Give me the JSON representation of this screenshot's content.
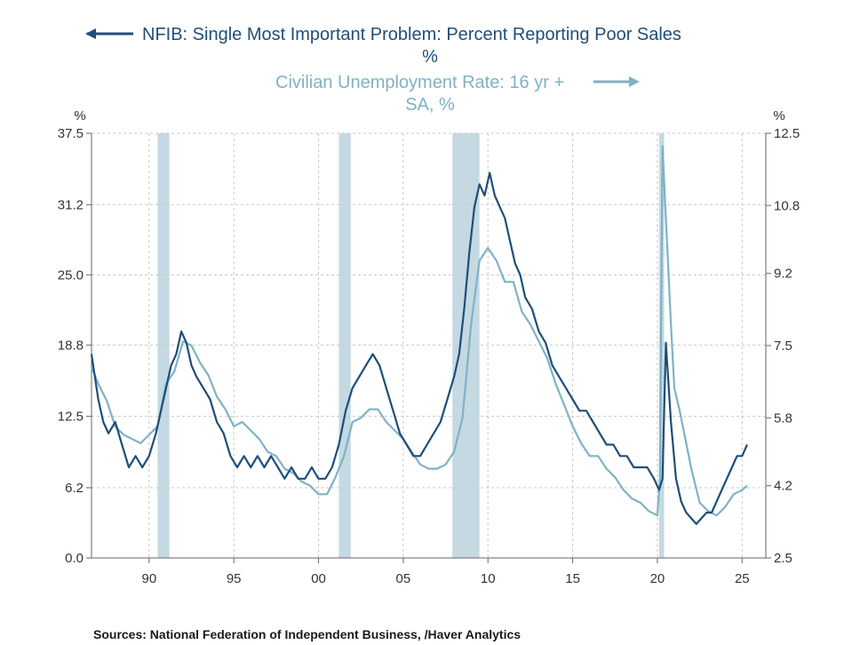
{
  "chart_data": {
    "type": "line",
    "title_left": "NFIB: Single Most Important Problem: Percent Reporting Poor Sales",
    "title_left_unit": "%",
    "title_right": "Civilian Unemployment Rate: 16 yr +",
    "title_right_unit": "SA, %",
    "left_axis": {
      "unit_label": "%",
      "ylim": [
        0.0,
        37.5
      ],
      "ticks": [
        0.0,
        6.2,
        12.5,
        18.8,
        25.0,
        31.2,
        37.5
      ],
      "tick_labels": [
        "0.0",
        "6.2",
        "12.5",
        "18.8",
        "25.0",
        "31.2",
        "37.5"
      ]
    },
    "right_axis": {
      "unit_label": "%",
      "ylim": [
        2.5,
        12.5
      ],
      "ticks": [
        2.5,
        4.2,
        5.8,
        7.5,
        9.2,
        10.8,
        12.5
      ],
      "tick_labels": [
        "2.5",
        "4.2",
        "5.8",
        "7.5",
        "9.2",
        "10.8",
        "12.5"
      ]
    },
    "x_axis": {
      "xlim": [
        1986.6,
        2026.4
      ],
      "ticks": [
        1990,
        1995,
        2000,
        2005,
        2010,
        2015,
        2020,
        2025
      ],
      "tick_labels": [
        "90",
        "95",
        "00",
        "05",
        "10",
        "15",
        "20",
        "25"
      ]
    },
    "grid": true,
    "recessions": [
      [
        1990.5,
        1991.2
      ],
      [
        2001.2,
        2001.9
      ],
      [
        2007.9,
        2009.5
      ],
      [
        2020.1,
        2020.4
      ]
    ],
    "colors": {
      "nfib": "#1f4e79",
      "unemployment": "#7fb2c5",
      "recession": "#c5d9e3"
    },
    "series": [
      {
        "name": "NFIB: Single Most Important Problem: Percent Reporting Poor Sales",
        "axis": "left",
        "x": [
          1986.6,
          1986.8,
          1987,
          1987.3,
          1987.6,
          1988,
          1988.4,
          1988.8,
          1989.2,
          1989.6,
          1990,
          1990.4,
          1990.7,
          1991,
          1991.3,
          1991.6,
          1991.9,
          1992.2,
          1992.5,
          1992.8,
          1993.2,
          1993.6,
          1994,
          1994.4,
          1994.8,
          1995.2,
          1995.6,
          1996,
          1996.4,
          1996.8,
          1997.2,
          1997.6,
          1998,
          1998.4,
          1998.8,
          1999.2,
          1999.6,
          2000,
          2000.4,
          2000.8,
          2001.2,
          2001.6,
          2002,
          2002.4,
          2002.8,
          2003.2,
          2003.6,
          2004,
          2004.4,
          2004.8,
          2005.2,
          2005.6,
          2006,
          2006.4,
          2006.8,
          2007.2,
          2007.6,
          2008,
          2008.3,
          2008.6,
          2008.9,
          2009.2,
          2009.5,
          2009.8,
          2010.1,
          2010.4,
          2010.7,
          2011,
          2011.3,
          2011.6,
          2011.9,
          2012.2,
          2012.6,
          2013,
          2013.4,
          2013.8,
          2014.2,
          2014.6,
          2015,
          2015.4,
          2015.8,
          2016.2,
          2016.6,
          2017,
          2017.4,
          2017.8,
          2018.2,
          2018.6,
          2019,
          2019.4,
          2019.8,
          2020.1,
          2020.3,
          2020.5,
          2020.8,
          2021.1,
          2021.4,
          2021.7,
          2022,
          2022.3,
          2022.6,
          2022.9,
          2023.2,
          2023.5,
          2023.8,
          2024.1,
          2024.4,
          2024.7,
          2025,
          2025.3
        ],
        "y": [
          18,
          16,
          14,
          12,
          11,
          12,
          10,
          8,
          9,
          8,
          9,
          11,
          13,
          15,
          17,
          18,
          20,
          19,
          17,
          16,
          15,
          14,
          12,
          11,
          9,
          8,
          9,
          8,
          9,
          8,
          9,
          8,
          7,
          8,
          7,
          7,
          8,
          7,
          7,
          8,
          10,
          13,
          15,
          16,
          17,
          18,
          17,
          15,
          13,
          11,
          10,
          9,
          9,
          10,
          11,
          12,
          14,
          16,
          18,
          22,
          27,
          31,
          33,
          32,
          34,
          32,
          31,
          30,
          28,
          26,
          25,
          23,
          22,
          20,
          19,
          17,
          16,
          15,
          14,
          13,
          13,
          12,
          11,
          10,
          10,
          9,
          9,
          8,
          8,
          8,
          7,
          6,
          7,
          19,
          12,
          7,
          5,
          4,
          3.5,
          3,
          3.5,
          4,
          4,
          5,
          6,
          7,
          8,
          9,
          9,
          10
        ]
      },
      {
        "name": "Civilian Unemployment Rate: 16 yr +",
        "axis": "right",
        "x": [
          1986.6,
          1987,
          1987.5,
          1988,
          1988.5,
          1989,
          1989.5,
          1990,
          1990.5,
          1991,
          1991.5,
          1992,
          1992.5,
          1993,
          1993.5,
          1994,
          1994.5,
          1995,
          1995.5,
          1996,
          1996.5,
          1997,
          1997.5,
          1998,
          1998.5,
          1999,
          1999.5,
          2000,
          2000.5,
          2001,
          2001.5,
          2002,
          2002.5,
          2003,
          2003.5,
          2004,
          2004.5,
          2005,
          2005.5,
          2006,
          2006.5,
          2007,
          2007.5,
          2008,
          2008.5,
          2009,
          2009.5,
          2010,
          2010.5,
          2011,
          2011.5,
          2012,
          2012.5,
          2013,
          2013.5,
          2014,
          2014.5,
          2015,
          2015.5,
          2016,
          2016.5,
          2017,
          2017.5,
          2018,
          2018.5,
          2019,
          2019.5,
          2020,
          2020.15,
          2020.3,
          2020.5,
          2020.8,
          2021,
          2021.3,
          2021.6,
          2022,
          2022.5,
          2023,
          2023.5,
          2024,
          2024.5,
          2025,
          2025.3
        ],
        "y": [
          7,
          6.6,
          6.2,
          5.6,
          5.4,
          5.3,
          5.2,
          5.4,
          5.6,
          6.6,
          6.9,
          7.6,
          7.5,
          7.1,
          6.8,
          6.3,
          6.0,
          5.6,
          5.7,
          5.5,
          5.3,
          5.0,
          4.9,
          4.6,
          4.5,
          4.3,
          4.2,
          4.0,
          4.0,
          4.4,
          4.9,
          5.7,
          5.8,
          6.0,
          6.0,
          5.7,
          5.5,
          5.3,
          5.0,
          4.7,
          4.6,
          4.6,
          4.7,
          5.0,
          5.8,
          8.0,
          9.5,
          9.8,
          9.5,
          9.0,
          9.0,
          8.3,
          8.0,
          7.6,
          7.2,
          6.6,
          6.1,
          5.6,
          5.2,
          4.9,
          4.9,
          4.6,
          4.4,
          4.1,
          3.9,
          3.8,
          3.6,
          3.5,
          4.4,
          12.2,
          10.5,
          8.0,
          6.5,
          6.0,
          5.4,
          4.6,
          3.8,
          3.6,
          3.5,
          3.7,
          4.0,
          4.1,
          4.2
        ]
      }
    ],
    "source": "Sources:  National Federation of Independent Business, /Haver Analytics"
  }
}
